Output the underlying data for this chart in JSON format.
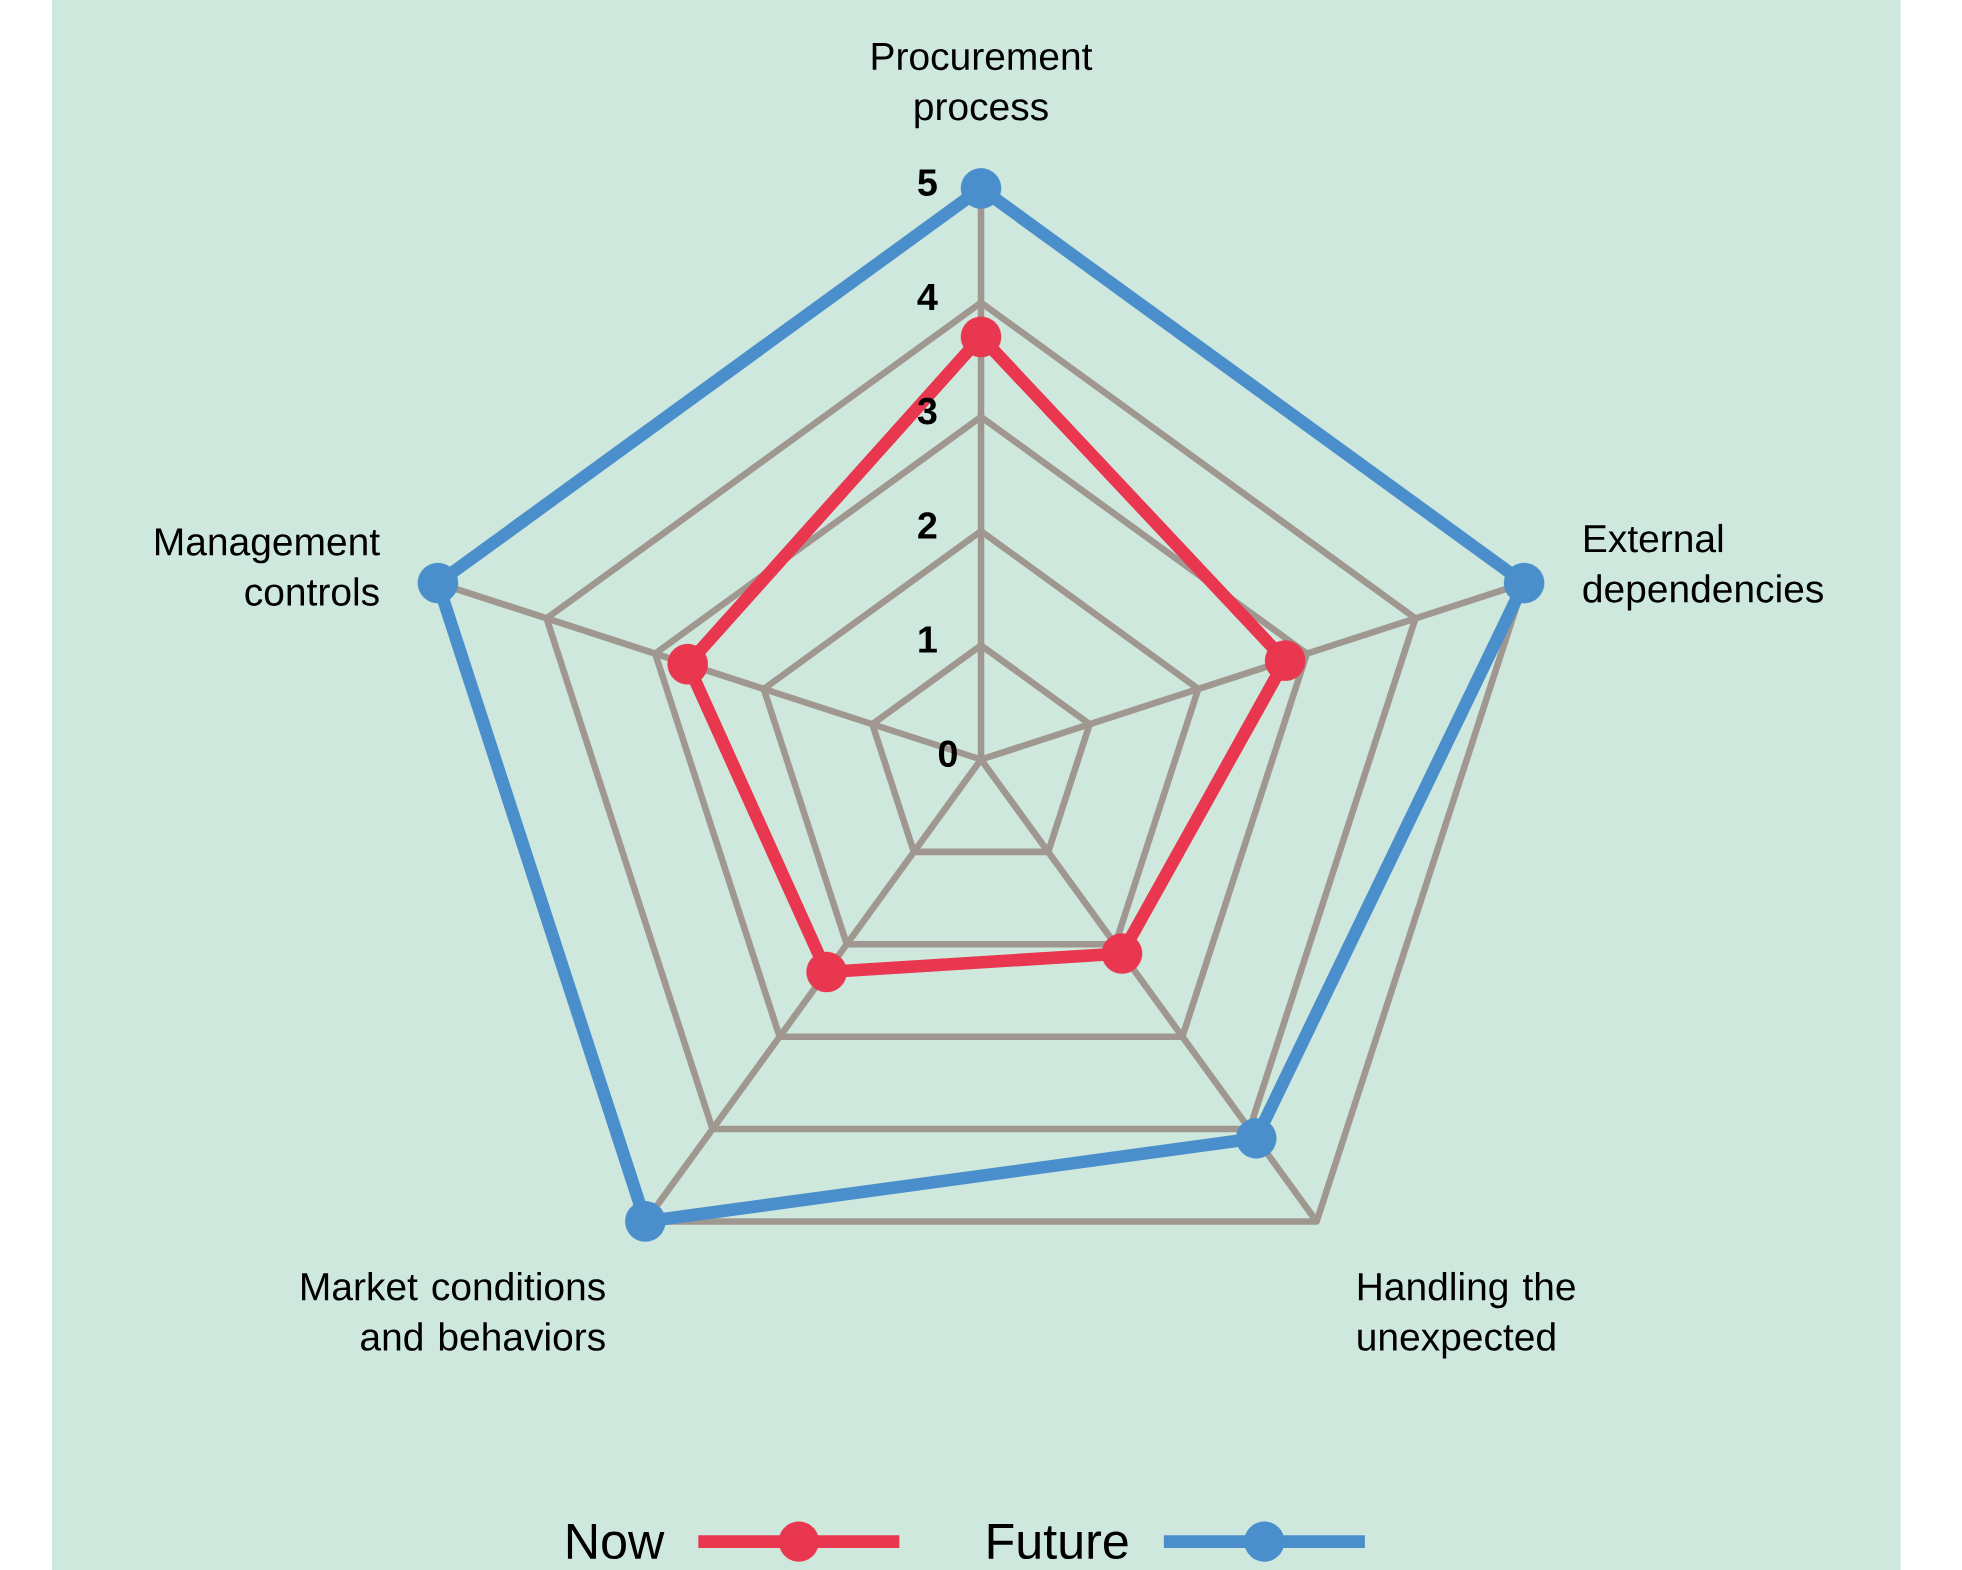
{
  "chart_data": {
    "type": "radar",
    "categories": [
      "Procurement process",
      "External dependencies",
      "Handling the unexpected",
      "Market conditions and behaviors",
      "Management controls"
    ],
    "series": [
      {
        "name": "Now",
        "color": "#e8374f",
        "values": [
          3.7,
          2.8,
          2.1,
          2.3,
          2.7
        ]
      },
      {
        "name": "Future",
        "color": "#4a8fcc",
        "values": [
          5,
          5,
          4.1,
          5,
          5
        ]
      }
    ],
    "ylim": [
      0,
      5
    ],
    "yticks": [
      0,
      1,
      2,
      3,
      4,
      5
    ],
    "grid": true,
    "legend": "bottom",
    "marker": "circle",
    "line_style": "solid"
  }
}
